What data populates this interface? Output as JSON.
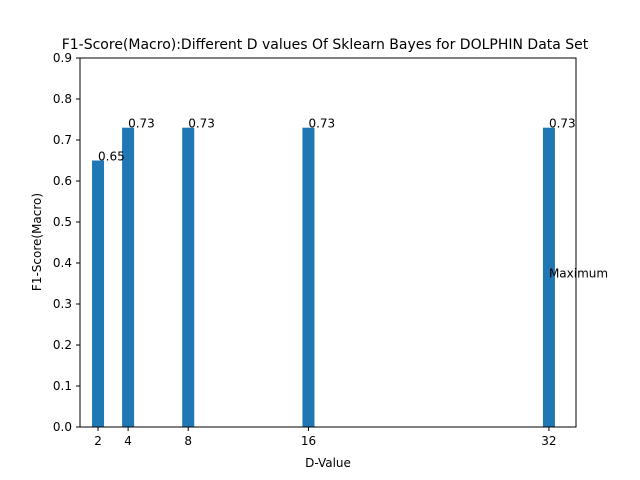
{
  "chart_data": {
    "type": "bar",
    "title": "F1-Score(Macro):Different D values Of Sklearn Bayes for DOLPHIN Data Set",
    "xlabel": "D-Value",
    "ylabel": "F1-Score(Macro)",
    "x": [
      2,
      4,
      8,
      16,
      32
    ],
    "values": [
      0.65,
      0.73,
      0.73,
      0.73,
      0.73
    ],
    "bar_value_labels": [
      "0.65",
      "0.73",
      "0.73",
      "0.73",
      "0.73"
    ],
    "xlim": [
      0.8,
      33.8
    ],
    "ylim": [
      0,
      0.9
    ],
    "bar_width_data_units": 0.8,
    "yticks": [
      0.0,
      0.1,
      0.2,
      0.3,
      0.4,
      0.5,
      0.6,
      0.7,
      0.8,
      0.9
    ],
    "ytick_labels": [
      "0.0",
      "0.1",
      "0.2",
      "0.3",
      "0.4",
      "0.5",
      "0.6",
      "0.7",
      "0.8",
      "0.9"
    ],
    "xticks": [
      2,
      4,
      8,
      16,
      32
    ],
    "xtick_labels": [
      "2",
      "4",
      "8",
      "16",
      "32"
    ],
    "annotation": {
      "text": "Maximum",
      "x": 32,
      "y": 0.365
    },
    "bar_color": "#1f77b4",
    "grid": false,
    "legend": "none"
  }
}
